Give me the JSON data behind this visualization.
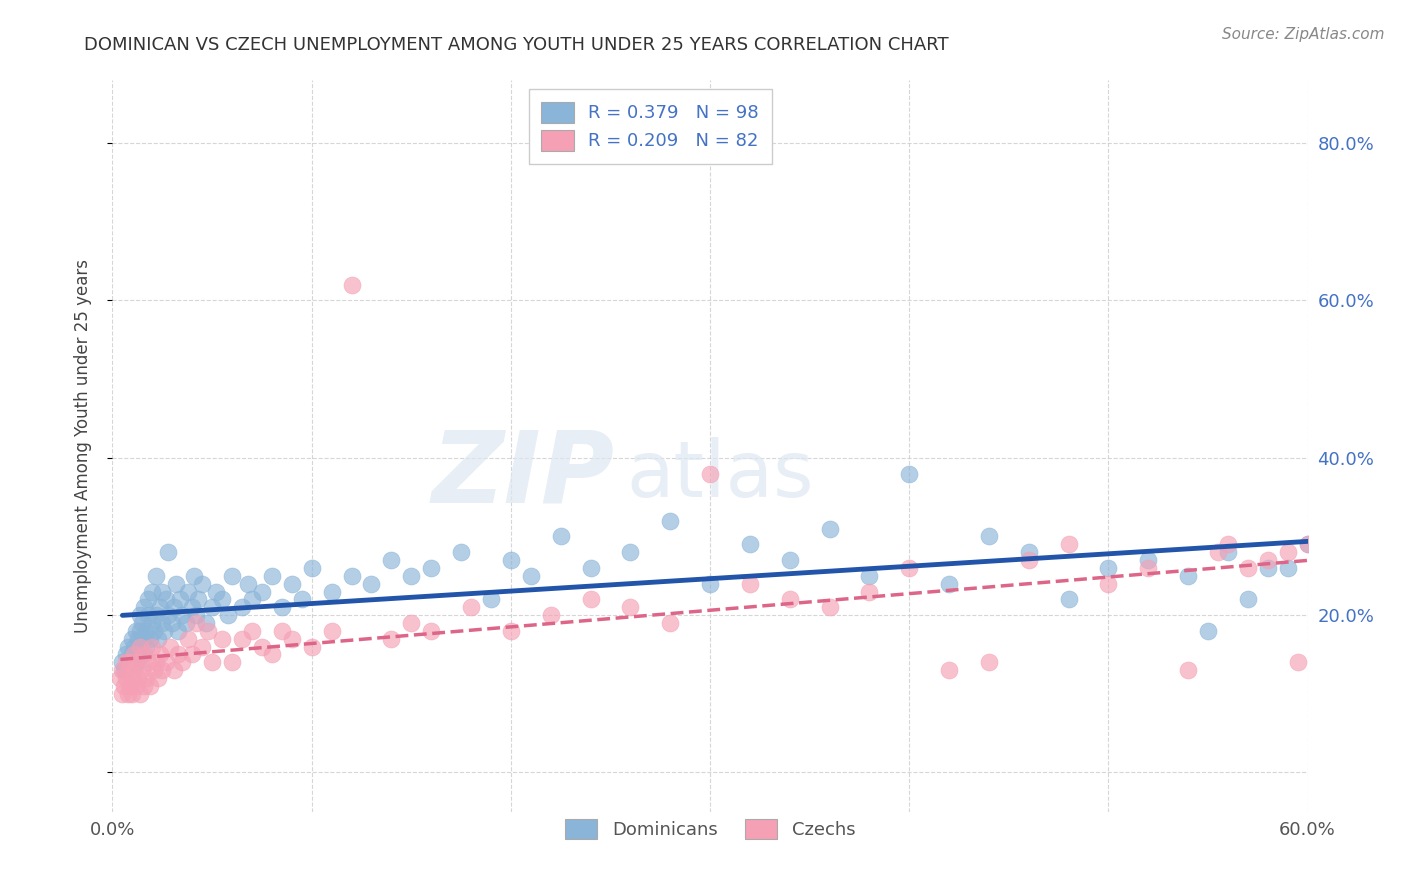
{
  "title": "DOMINICAN VS CZECH UNEMPLOYMENT AMONG YOUTH UNDER 25 YEARS CORRELATION CHART",
  "source": "Source: ZipAtlas.com",
  "ylabel": "Unemployment Among Youth under 25 years",
  "xlim": [
    0.0,
    0.6
  ],
  "ylim": [
    -0.05,
    0.88
  ],
  "blue_R": 0.379,
  "blue_N": 98,
  "pink_R": 0.209,
  "pink_N": 82,
  "blue_color": "#8ab4d8",
  "pink_color": "#f5a0b5",
  "blue_line_color": "#2255aa",
  "pink_line_color": "#dd6688",
  "legend_label_blue": "Dominicans",
  "legend_label_pink": "Czechs",
  "watermark": "ZIPatlas",
  "blue_scatter_x": [
    0.005,
    0.006,
    0.007,
    0.008,
    0.009,
    0.01,
    0.01,
    0.011,
    0.012,
    0.012,
    0.013,
    0.013,
    0.014,
    0.014,
    0.014,
    0.015,
    0.015,
    0.016,
    0.016,
    0.017,
    0.017,
    0.018,
    0.018,
    0.019,
    0.02,
    0.02,
    0.021,
    0.022,
    0.022,
    0.023,
    0.024,
    0.025,
    0.025,
    0.026,
    0.027,
    0.028,
    0.028,
    0.03,
    0.031,
    0.032,
    0.033,
    0.034,
    0.035,
    0.037,
    0.038,
    0.04,
    0.041,
    0.042,
    0.043,
    0.045,
    0.047,
    0.05,
    0.052,
    0.055,
    0.058,
    0.06,
    0.065,
    0.068,
    0.07,
    0.075,
    0.08,
    0.085,
    0.09,
    0.095,
    0.1,
    0.11,
    0.12,
    0.13,
    0.14,
    0.15,
    0.16,
    0.175,
    0.19,
    0.2,
    0.21,
    0.225,
    0.24,
    0.26,
    0.28,
    0.3,
    0.32,
    0.34,
    0.36,
    0.38,
    0.4,
    0.42,
    0.44,
    0.46,
    0.48,
    0.5,
    0.52,
    0.54,
    0.55,
    0.56,
    0.57,
    0.58,
    0.59,
    0.6
  ],
  "blue_scatter_y": [
    0.14,
    0.13,
    0.15,
    0.16,
    0.14,
    0.15,
    0.17,
    0.16,
    0.15,
    0.18,
    0.14,
    0.17,
    0.16,
    0.18,
    0.2,
    0.15,
    0.19,
    0.17,
    0.21,
    0.16,
    0.18,
    0.2,
    0.22,
    0.17,
    0.19,
    0.23,
    0.18,
    0.2,
    0.25,
    0.17,
    0.21,
    0.19,
    0.23,
    0.18,
    0.22,
    0.2,
    0.28,
    0.19,
    0.21,
    0.24,
    0.18,
    0.22,
    0.2,
    0.19,
    0.23,
    0.21,
    0.25,
    0.2,
    0.22,
    0.24,
    0.19,
    0.21,
    0.23,
    0.22,
    0.2,
    0.25,
    0.21,
    0.24,
    0.22,
    0.23,
    0.25,
    0.21,
    0.24,
    0.22,
    0.26,
    0.23,
    0.25,
    0.24,
    0.27,
    0.25,
    0.26,
    0.28,
    0.22,
    0.27,
    0.25,
    0.3,
    0.26,
    0.28,
    0.32,
    0.24,
    0.29,
    0.27,
    0.31,
    0.25,
    0.38,
    0.24,
    0.3,
    0.28,
    0.22,
    0.26,
    0.27,
    0.25,
    0.18,
    0.28,
    0.22,
    0.26,
    0.26,
    0.29
  ],
  "pink_scatter_x": [
    0.004,
    0.005,
    0.005,
    0.006,
    0.007,
    0.007,
    0.008,
    0.008,
    0.009,
    0.009,
    0.01,
    0.01,
    0.011,
    0.011,
    0.012,
    0.012,
    0.013,
    0.014,
    0.014,
    0.015,
    0.016,
    0.016,
    0.017,
    0.018,
    0.019,
    0.02,
    0.021,
    0.022,
    0.023,
    0.024,
    0.025,
    0.027,
    0.029,
    0.031,
    0.033,
    0.035,
    0.038,
    0.04,
    0.042,
    0.045,
    0.048,
    0.05,
    0.055,
    0.06,
    0.065,
    0.07,
    0.075,
    0.08,
    0.085,
    0.09,
    0.1,
    0.11,
    0.12,
    0.14,
    0.15,
    0.16,
    0.18,
    0.2,
    0.22,
    0.24,
    0.26,
    0.28,
    0.3,
    0.32,
    0.34,
    0.36,
    0.38,
    0.4,
    0.42,
    0.44,
    0.46,
    0.48,
    0.5,
    0.52,
    0.54,
    0.555,
    0.56,
    0.57,
    0.58,
    0.59,
    0.595,
    0.6
  ],
  "pink_scatter_y": [
    0.12,
    0.1,
    0.13,
    0.11,
    0.12,
    0.14,
    0.1,
    0.13,
    0.11,
    0.14,
    0.12,
    0.1,
    0.13,
    0.15,
    0.11,
    0.14,
    0.12,
    0.1,
    0.16,
    0.13,
    0.11,
    0.15,
    0.12,
    0.14,
    0.11,
    0.16,
    0.13,
    0.14,
    0.12,
    0.15,
    0.13,
    0.14,
    0.16,
    0.13,
    0.15,
    0.14,
    0.17,
    0.15,
    0.19,
    0.16,
    0.18,
    0.14,
    0.17,
    0.14,
    0.17,
    0.18,
    0.16,
    0.15,
    0.18,
    0.17,
    0.16,
    0.18,
    0.62,
    0.17,
    0.19,
    0.18,
    0.21,
    0.18,
    0.2,
    0.22,
    0.21,
    0.19,
    0.38,
    0.24,
    0.22,
    0.21,
    0.23,
    0.26,
    0.13,
    0.14,
    0.27,
    0.29,
    0.24,
    0.26,
    0.13,
    0.28,
    0.29,
    0.26,
    0.27,
    0.28,
    0.14,
    0.29
  ]
}
